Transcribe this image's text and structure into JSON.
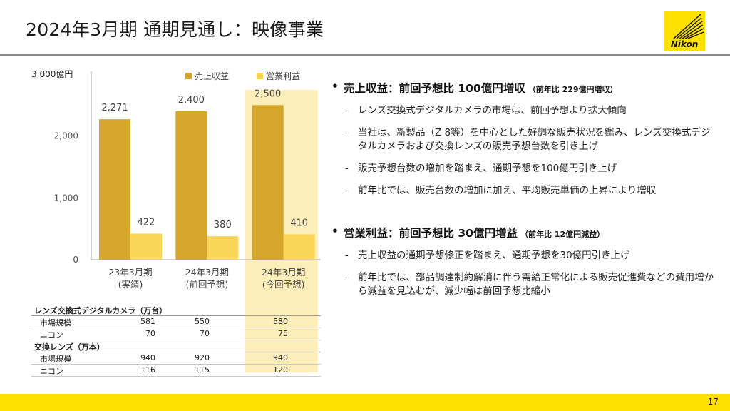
{
  "title": "2024年3月期 通期見通し：映像事業",
  "logo_text": "Nikon",
  "colors": {
    "revenue": "#d4a62a",
    "profit": "#fad557",
    "highlight": "#fdeeb9",
    "footer": "#ffe100"
  },
  "chart_data": {
    "type": "bar",
    "categories": [
      "23年3月期\n(実績)",
      "24年3月期\n(前回予想)",
      "24年3月期\n(今回予想)"
    ],
    "series": [
      {
        "name": "売上収益",
        "values": [
          2271,
          2400,
          2500
        ]
      },
      {
        "name": "営業利益",
        "values": [
          422,
          380,
          410
        ]
      }
    ],
    "data_labels": [
      [
        "2,271",
        "2,400",
        "2,500"
      ],
      [
        "422",
        "380",
        "410"
      ]
    ],
    "ylim": [
      0,
      3000
    ],
    "ytick_labels": [
      "0",
      "1,000",
      "2,000",
      "3,000億円"
    ],
    "ytick_values": [
      0,
      1000,
      2000,
      3000
    ],
    "legend_position": "top"
  },
  "table": {
    "groups": [
      {
        "header": "レンズ交換式デジタルカメラ（万台）",
        "rows": [
          {
            "label": "市場規模",
            "values": [
              "581",
              "550",
              "580"
            ]
          },
          {
            "label": "ニコン",
            "values": [
              "70",
              "70",
              "75"
            ]
          }
        ]
      },
      {
        "header": "交換レンズ（万本）",
        "rows": [
          {
            "label": "市場規模",
            "values": [
              "940",
              "920",
              "940"
            ]
          },
          {
            "label": "ニコン",
            "values": [
              "116",
              "115",
              "120"
            ]
          }
        ]
      }
    ]
  },
  "sections": [
    {
      "bullet": "•",
      "heading": "売上収益：前回予想比 100億円増収",
      "note": "（前年比 229億円増収）",
      "items": [
        "レンズ交換式デジタルカメラの市場は、前回予想より拡大傾向",
        "当社は、新製品（Z 8等）を中心とした好調な販売状況を鑑み、レンズ交換式デジタルカメラおよび交換レンズの販売予想台数を引き上げ",
        "販売予想台数の増加を踏まえ、通期予想を100億円引き上げ",
        "前年比では、販売台数の増加に加え、平均販売単価の上昇により増収"
      ]
    },
    {
      "bullet": "•",
      "heading": "営業利益：前回予想比 30億円増益",
      "note": "（前年比 12億円減益）",
      "items": [
        "売上収益の通期予想修正を踏まえ、通期予想を30億円引き上げ",
        "前年比では、部品調達制約解消に伴う需給正常化による販売促進費などの費用増から減益を見込むが、減少幅は前回予想比縮小"
      ]
    }
  ],
  "dash": "-",
  "page_number": "17"
}
